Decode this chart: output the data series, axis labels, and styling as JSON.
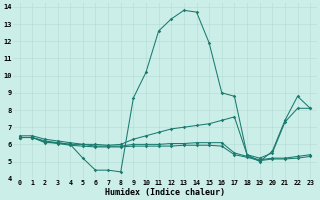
{
  "bg_color": "#cceee8",
  "grid_color": "#b8ddd8",
  "line_color": "#1a7a6e",
  "xlabel": "Humidex (Indice chaleur)",
  "xlim": [
    -0.5,
    23.5
  ],
  "ylim": [
    4,
    14.2
  ],
  "xticks": [
    0,
    1,
    2,
    3,
    4,
    5,
    6,
    7,
    8,
    9,
    10,
    11,
    12,
    13,
    14,
    15,
    16,
    17,
    18,
    19,
    20,
    21,
    22,
    23
  ],
  "yticks": [
    4,
    5,
    6,
    7,
    8,
    9,
    10,
    11,
    12,
    13,
    14
  ],
  "series": [
    [
      6.4,
      6.4,
      6.1,
      6.1,
      6.0,
      5.2,
      4.5,
      4.5,
      4.4,
      8.7,
      10.2,
      12.6,
      13.3,
      13.8,
      13.7,
      11.9,
      9.0,
      8.8,
      5.4,
      5.0,
      5.6,
      7.4,
      8.8,
      8.1
    ],
    [
      6.5,
      6.5,
      6.3,
      6.2,
      6.1,
      6.0,
      6.0,
      5.95,
      6.0,
      6.3,
      6.5,
      6.7,
      6.9,
      7.0,
      7.1,
      7.2,
      7.4,
      7.6,
      5.4,
      5.2,
      5.5,
      7.3,
      8.1,
      8.1
    ],
    [
      6.4,
      6.4,
      6.2,
      6.1,
      6.0,
      6.0,
      5.9,
      5.9,
      5.9,
      6.0,
      6.0,
      6.0,
      6.05,
      6.05,
      6.1,
      6.1,
      6.1,
      5.5,
      5.3,
      5.1,
      5.2,
      5.2,
      5.3,
      5.4
    ],
    [
      6.4,
      6.4,
      6.15,
      6.05,
      5.95,
      5.9,
      5.85,
      5.85,
      5.85,
      5.9,
      5.9,
      5.9,
      5.9,
      5.95,
      5.95,
      5.95,
      5.9,
      5.4,
      5.25,
      5.05,
      5.15,
      5.15,
      5.2,
      5.3
    ]
  ]
}
